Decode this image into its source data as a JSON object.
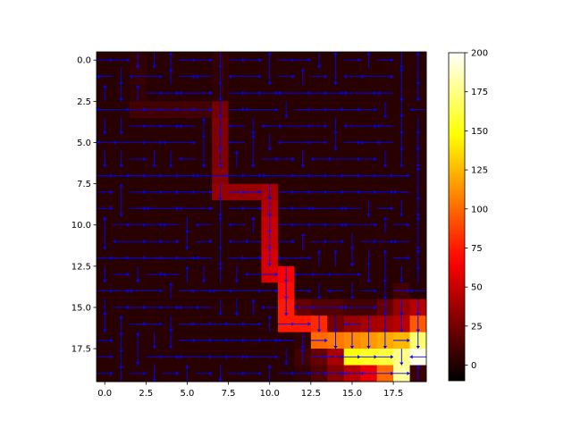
{
  "chart_data": {
    "type": "heatmap",
    "title": "",
    "xlabel": "",
    "ylabel": "",
    "grid": false,
    "rows": 20,
    "cols": 20,
    "x_ticks": [
      "0.0",
      "2.5",
      "5.0",
      "7.5",
      "10.0",
      "12.5",
      "15.0",
      "17.5"
    ],
    "x_tick_values": [
      0,
      2.5,
      5,
      7.5,
      10,
      12.5,
      15,
      17.5
    ],
    "y_ticks": [
      "0.0",
      "2.5",
      "5.0",
      "7.5",
      "10.0",
      "12.5",
      "15.0",
      "17.5"
    ],
    "y_tick_values": [
      0,
      2.5,
      5,
      7.5,
      10,
      12.5,
      15,
      17.5
    ],
    "colorbar": {
      "ticks": [
        "0",
        "25",
        "50",
        "75",
        "100",
        "125",
        "150",
        "175",
        "200"
      ],
      "tick_values": [
        0,
        25,
        50,
        75,
        100,
        125,
        150,
        175,
        200
      ],
      "vmin": -10,
      "vmax": 200,
      "colormap": "hot"
    },
    "arrow_color": "#0000ff",
    "values": [
      [
        2,
        2,
        5,
        2,
        2,
        2,
        2,
        6,
        2,
        2,
        2,
        2,
        2,
        2,
        2,
        2,
        2,
        2,
        2,
        2
      ],
      [
        2,
        2,
        6,
        2,
        2,
        2,
        2,
        5,
        2,
        2,
        2,
        2,
        2,
        2,
        2,
        2,
        2,
        2,
        2,
        2
      ],
      [
        2,
        2,
        5,
        2,
        2,
        2,
        2,
        4,
        2,
        2,
        2,
        2,
        2,
        2,
        2,
        2,
        2,
        2,
        2,
        2
      ],
      [
        2,
        2,
        10,
        10,
        10,
        10,
        10,
        25,
        2,
        2,
        2,
        2,
        2,
        2,
        2,
        2,
        2,
        2,
        2,
        2
      ],
      [
        2,
        2,
        2,
        2,
        2,
        2,
        2,
        28,
        2,
        2,
        2,
        2,
        2,
        2,
        2,
        2,
        2,
        2,
        2,
        2
      ],
      [
        2,
        2,
        2,
        2,
        2,
        2,
        2,
        28,
        2,
        2,
        2,
        2,
        2,
        2,
        2,
        2,
        2,
        2,
        2,
        2
      ],
      [
        2,
        2,
        2,
        2,
        2,
        2,
        2,
        28,
        2,
        2,
        2,
        2,
        2,
        2,
        2,
        2,
        2,
        2,
        2,
        2
      ],
      [
        2,
        2,
        2,
        2,
        2,
        2,
        2,
        30,
        2,
        2,
        2,
        2,
        2,
        2,
        2,
        2,
        2,
        2,
        2,
        2
      ],
      [
        2,
        2,
        2,
        2,
        2,
        2,
        2,
        35,
        35,
        35,
        40,
        2,
        2,
        2,
        2,
        2,
        2,
        2,
        2,
        2
      ],
      [
        2,
        2,
        2,
        2,
        2,
        2,
        2,
        2,
        2,
        2,
        45,
        2,
        2,
        2,
        2,
        2,
        2,
        2,
        2,
        2
      ],
      [
        2,
        2,
        2,
        2,
        2,
        2,
        2,
        2,
        2,
        2,
        50,
        2,
        2,
        2,
        2,
        2,
        2,
        2,
        2,
        2
      ],
      [
        2,
        2,
        2,
        2,
        2,
        2,
        2,
        2,
        2,
        2,
        50,
        2,
        2,
        2,
        2,
        2,
        2,
        2,
        2,
        2
      ],
      [
        2,
        2,
        2,
        2,
        2,
        2,
        2,
        2,
        2,
        2,
        55,
        2,
        2,
        2,
        2,
        2,
        2,
        2,
        2,
        2
      ],
      [
        2,
        2,
        2,
        2,
        2,
        2,
        2,
        2,
        2,
        2,
        55,
        65,
        2,
        2,
        2,
        2,
        2,
        2,
        2,
        2
      ],
      [
        2,
        2,
        2,
        2,
        2,
        2,
        2,
        2,
        2,
        2,
        2,
        70,
        2,
        2,
        2,
        2,
        2,
        2,
        10,
        2
      ],
      [
        2,
        2,
        2,
        2,
        2,
        2,
        2,
        2,
        2,
        2,
        2,
        75,
        20,
        15,
        15,
        10,
        10,
        20,
        35,
        45
      ],
      [
        2,
        2,
        2,
        2,
        2,
        2,
        2,
        2,
        2,
        2,
        2,
        75,
        75,
        80,
        25,
        35,
        40,
        40,
        45,
        95
      ],
      [
        2,
        2,
        2,
        2,
        2,
        2,
        2,
        2,
        2,
        2,
        2,
        2,
        5,
        100,
        105,
        110,
        115,
        120,
        125,
        170
      ],
      [
        2,
        2,
        2,
        2,
        2,
        2,
        2,
        2,
        2,
        2,
        2,
        2,
        10,
        20,
        40,
        150,
        155,
        160,
        175,
        195
      ],
      [
        2,
        2,
        2,
        2,
        2,
        2,
        2,
        2,
        2,
        2,
        2,
        2,
        5,
        15,
        30,
        45,
        60,
        100,
        180,
        8
      ]
    ],
    "arrows": [
      [
        "R",
        "R",
        "D",
        "D",
        "U",
        "R",
        "R",
        "D",
        "R",
        "R",
        "U",
        "R",
        "R",
        "D",
        "U",
        "R",
        "U",
        "R",
        "D",
        "U"
      ],
      [
        "L",
        "D",
        "L",
        "R",
        "U",
        "R",
        "L",
        "D",
        "L",
        "R",
        "D",
        "R",
        "U",
        "R",
        "D",
        "L",
        "L",
        "R",
        "U",
        "D"
      ],
      [
        "U",
        "D",
        "U",
        "R",
        "R",
        "L",
        "R",
        "D",
        "R",
        "R",
        "R",
        "L",
        "R",
        "R",
        "R",
        "L",
        "R",
        "L",
        "D",
        "D"
      ],
      [
        "L",
        "R",
        "R",
        "R",
        "R",
        "R",
        "R",
        "D",
        "R",
        "L",
        "R",
        "D",
        "R",
        "R",
        "R",
        "R",
        "R",
        "D",
        "D",
        "L"
      ],
      [
        "D",
        "D",
        "R",
        "R",
        "R",
        "L",
        "U",
        "D",
        "L",
        "D",
        "L",
        "L",
        "R",
        "R",
        "D",
        "L",
        "R",
        "L",
        "D",
        "D"
      ],
      [
        "L",
        "L",
        "R",
        "R",
        "L",
        "R",
        "U",
        "D",
        "L",
        "U",
        "D",
        "L",
        "R",
        "R",
        "D",
        "R",
        "L",
        "L",
        "D",
        "D"
      ],
      [
        "D",
        "D",
        "R",
        "D",
        "D",
        "L",
        "D",
        "D",
        "U",
        "D",
        "R",
        "R",
        "D",
        "L",
        "L",
        "R",
        "R",
        "D",
        "D",
        "D"
      ],
      [
        "R",
        "R",
        "R",
        "R",
        "R",
        "R",
        "L",
        "R",
        "R",
        "R",
        "L",
        "R",
        "R",
        "R",
        "R",
        "R",
        "R",
        "R",
        "R",
        "U"
      ],
      [
        "R",
        "U",
        "R",
        "R",
        "R",
        "R",
        "R",
        "D",
        "R",
        "R",
        "D",
        "R",
        "R",
        "R",
        "R",
        "R",
        "R",
        "R",
        "L",
        "D"
      ],
      [
        "R",
        "D",
        "R",
        "L",
        "R",
        "L",
        "R",
        "D",
        "R",
        "R",
        "D",
        "R",
        "R",
        "L",
        "R",
        "L",
        "D",
        "R",
        "D",
        "D"
      ],
      [
        "U",
        "R",
        "R",
        "R",
        "L",
        "D",
        "L",
        "U",
        "L",
        "U",
        "D",
        "R",
        "R",
        "R",
        "R",
        "L",
        "R",
        "U",
        "R",
        "U"
      ],
      [
        "D",
        "L",
        "R",
        "R",
        "R",
        "D",
        "R",
        "D",
        "L",
        "L",
        "D",
        "R",
        "U",
        "R",
        "R",
        "D",
        "R",
        "R",
        "L",
        "D"
      ],
      [
        "R",
        "R",
        "R",
        "R",
        "R",
        "R",
        "L",
        "D",
        "R",
        "R",
        "D",
        "L",
        "R",
        "U",
        "U",
        "D",
        "D",
        "U",
        "R",
        "U"
      ],
      [
        "D",
        "R",
        "D",
        "R",
        "L",
        "U",
        "D",
        "U",
        "D",
        "L",
        "R",
        "D",
        "L",
        "L",
        "L",
        "R",
        "D",
        "D",
        "D",
        "U"
      ],
      [
        "R",
        "R",
        "L",
        "R",
        "U",
        "R",
        "R",
        "L",
        "L",
        "R",
        "R",
        "D",
        "R",
        "D",
        "L",
        "D",
        "R",
        "D",
        "R",
        "L"
      ],
      [
        "D",
        "R",
        "R",
        "R",
        "R",
        "L",
        "L",
        "D",
        "D",
        "U",
        "L",
        "D",
        "L",
        "L",
        "R",
        "L",
        "R",
        "D",
        "D",
        "D"
      ],
      [
        "D",
        "U",
        "R",
        "R",
        "D",
        "R",
        "R",
        "R",
        "R",
        "R",
        "U",
        "R",
        "R",
        "D",
        "D",
        "L",
        "D",
        "D",
        "D",
        "D"
      ],
      [
        "R",
        "U",
        "U",
        "D",
        "D",
        "R",
        "R",
        "R",
        "R",
        "R",
        "R",
        "L",
        "D",
        "R",
        "D",
        "D",
        "D",
        "D",
        "R",
        "D"
      ],
      [
        "R",
        "U",
        "D",
        "R",
        "R",
        "L",
        "R",
        "R",
        "R",
        "L",
        "R",
        "D",
        "U",
        "R",
        "R",
        "R",
        "R",
        "R",
        "D",
        "L"
      ],
      [
        "R",
        "U",
        "R",
        "D",
        "R",
        "U",
        "R",
        "D",
        "R",
        "R",
        "U",
        "R",
        "R",
        "R",
        "R",
        "L",
        "L",
        "R",
        "R",
        "U"
      ]
    ]
  }
}
